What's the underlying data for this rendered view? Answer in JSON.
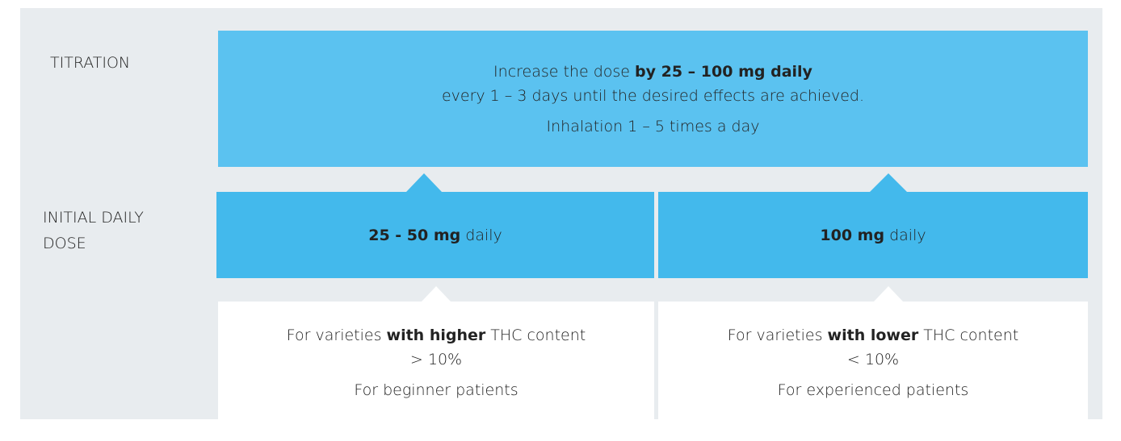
{
  "titration": {
    "label": "TITRATION",
    "line1": {
      "before": "Increase the dose ",
      "bold": "by 25 – 100 mg daily"
    },
    "line2": "every 1 – 3 days until the desired effects are achieved.",
    "line3": "Inhalation 1 – 5 times a day"
  },
  "initial": {
    "label_lines": [
      "INITIAL DAILY",
      "DOSE"
    ],
    "doses": [
      {
        "bold": "25 - 50 mg",
        "rest": " daily"
      },
      {
        "bold": "100 mg",
        "rest": " daily"
      }
    ]
  },
  "criteria": [
    {
      "before": "For varieties ",
      "bold": "with higher",
      "after": " THC content",
      "threshold": "> 10%",
      "patients": "For beginner patients"
    },
    {
      "before": "For varieties ",
      "bold": "with lower",
      "after": " THC content",
      "threshold": "< 10%",
      "patients": "For experienced patients"
    }
  ]
}
